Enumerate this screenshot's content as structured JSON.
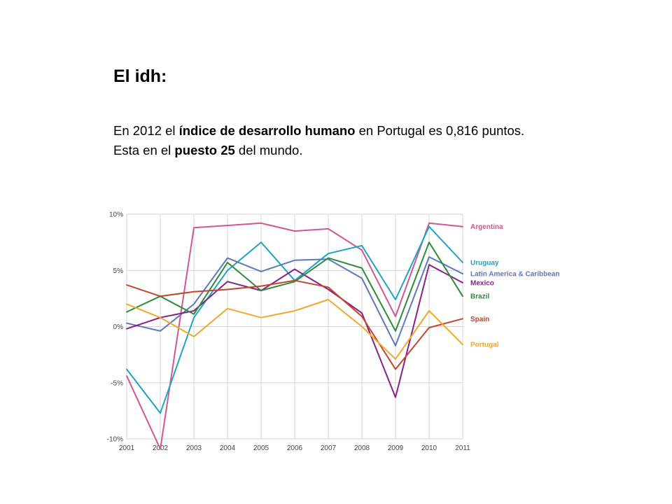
{
  "slide": {
    "title": "El idh:",
    "line1": {
      "p1": "En 2012 el ",
      "b1": "índice de desarrollo humano",
      "p2": " en Portugal es 0,816 puntos."
    },
    "line2": {
      "p1": "Esta en el ",
      "b1": "puesto 25",
      "p2": " del mundo."
    }
  },
  "chart_data": {
    "type": "line",
    "title": "",
    "xlabel": "",
    "ylabel": "",
    "x": [
      2001,
      2002,
      2003,
      2004,
      2005,
      2006,
      2007,
      2008,
      2009,
      2010,
      2011
    ],
    "x_tick_labels": [
      "2001",
      "2002",
      "2003",
      "2004",
      "2005",
      "2006",
      "2007",
      "2008",
      "2009",
      "2010",
      "2011"
    ],
    "ylim": [
      -10,
      10
    ],
    "y_ticks": [
      10,
      5,
      0,
      -5,
      -10
    ],
    "y_tick_labels": [
      "10%",
      "5%",
      "0%",
      "-5%",
      "-10%"
    ],
    "grid": true,
    "legend_position": "right",
    "series": [
      {
        "name": "Argentina",
        "color": "#d0588f",
        "values": [
          -4.4,
          -10.9,
          8.8,
          9.0,
          9.2,
          8.5,
          8.7,
          6.8,
          0.9,
          9.2,
          8.9
        ]
      },
      {
        "name": "Uruguay",
        "color": "#1fa3c4",
        "values": [
          -3.8,
          -7.7,
          0.8,
          5.0,
          7.5,
          4.1,
          6.5,
          7.2,
          2.4,
          8.9,
          5.7
        ]
      },
      {
        "name": "Latin America & Caribbean",
        "color": "#5b78c0",
        "values": [
          0.3,
          -0.4,
          2.0,
          6.1,
          4.9,
          5.9,
          6.0,
          4.3,
          -1.7,
          6.2,
          4.7
        ]
      },
      {
        "name": "Mexico",
        "color": "#8a1f8c",
        "values": [
          -0.2,
          0.8,
          1.4,
          4.0,
          3.2,
          5.1,
          3.3,
          1.2,
          -6.3,
          5.5,
          3.9
        ]
      },
      {
        "name": "Brazil",
        "color": "#2e8b3a",
        "values": [
          1.3,
          2.7,
          1.1,
          5.7,
          3.2,
          4.0,
          6.1,
          5.2,
          -0.4,
          7.5,
          2.7
        ]
      },
      {
        "name": "Spain",
        "color": "#c0462e",
        "values": [
          3.7,
          2.7,
          3.1,
          3.3,
          3.6,
          4.1,
          3.5,
          0.9,
          -3.8,
          -0.1,
          0.7
        ]
      },
      {
        "name": "Portugal",
        "color": "#f0a830",
        "values": [
          2.0,
          0.8,
          -0.9,
          1.6,
          0.8,
          1.4,
          2.4,
          0.0,
          -2.9,
          1.4,
          -1.6
        ]
      }
    ]
  }
}
